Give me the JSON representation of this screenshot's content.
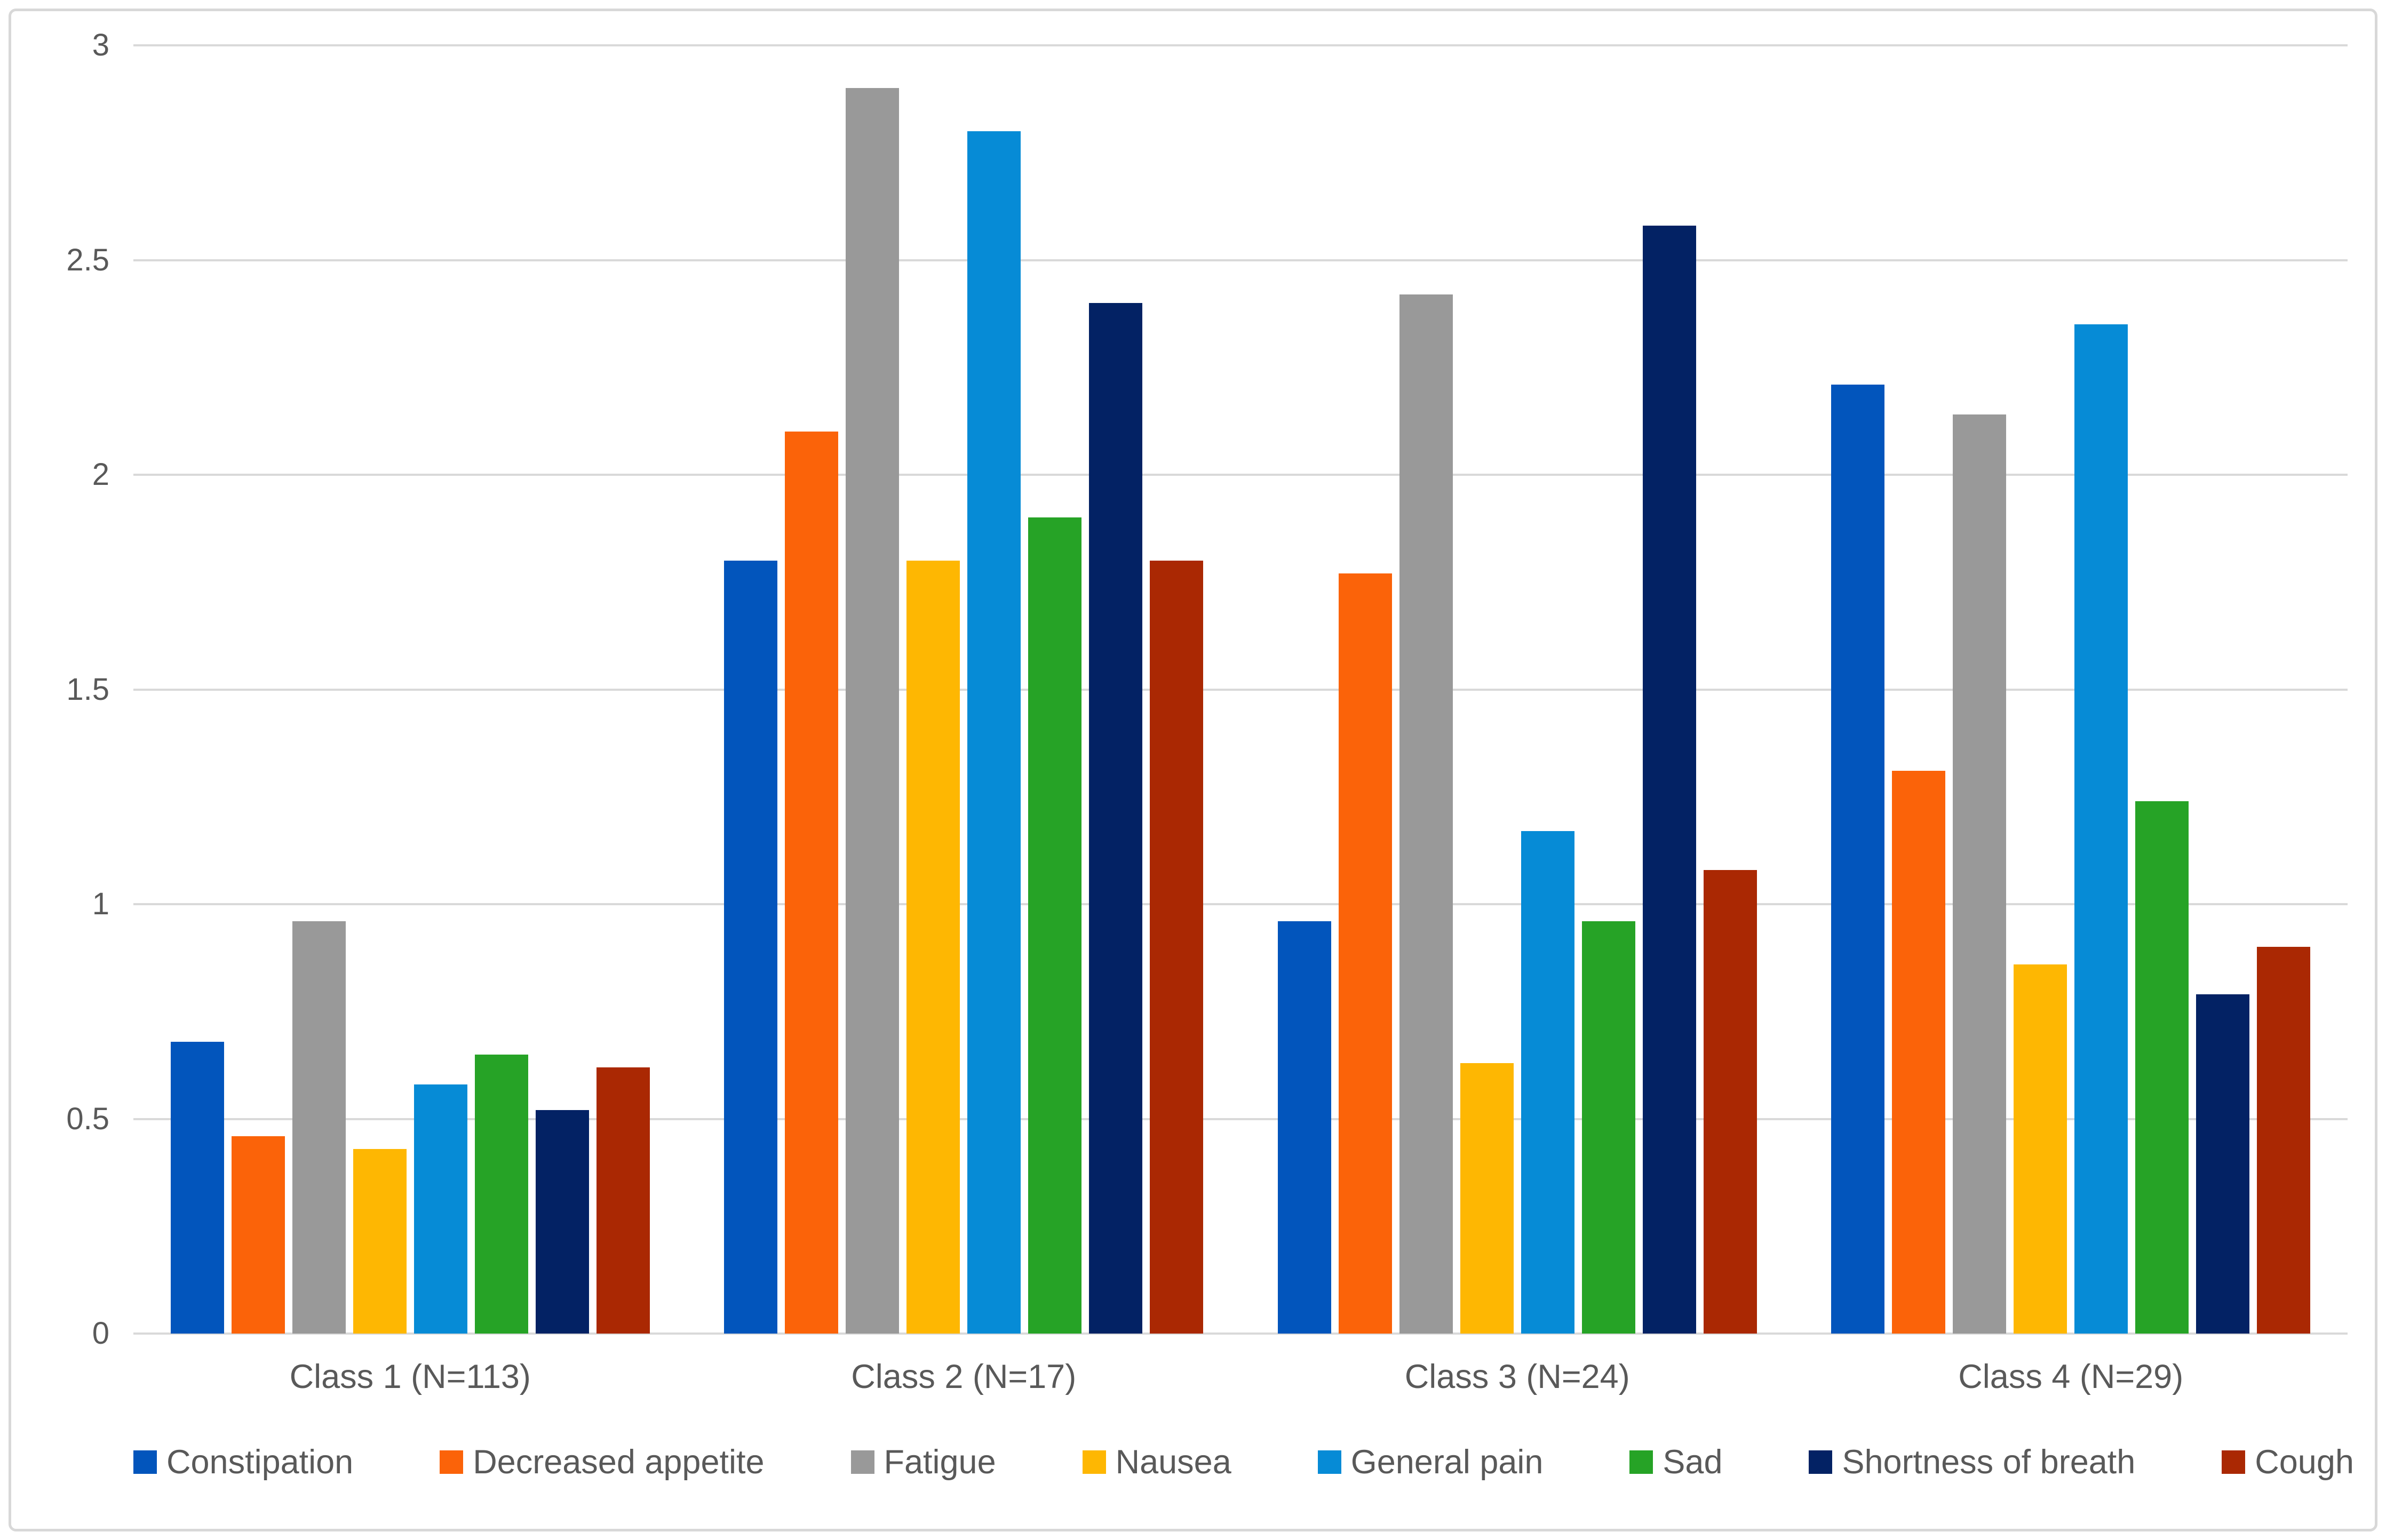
{
  "chart_data": {
    "type": "bar",
    "title": "",
    "xlabel": "",
    "ylabel": "",
    "categories": [
      "Class 1 (N=113)",
      "Class 2 (N=17)",
      "Class 3 (N=24)",
      "Class 4 (N=29)"
    ],
    "series": [
      {
        "name": "Constipation",
        "color": "#0255BC",
        "values": [
          0.68,
          1.8,
          0.96,
          2.21
        ]
      },
      {
        "name": "Decreased appetite",
        "color": "#FB6309",
        "values": [
          0.46,
          2.1,
          1.77,
          1.31
        ]
      },
      {
        "name": "Fatigue",
        "color": "#999999",
        "values": [
          0.96,
          2.9,
          2.42,
          2.14
        ]
      },
      {
        "name": "Nausea",
        "color": "#FEB702",
        "values": [
          0.43,
          1.8,
          0.63,
          0.86
        ]
      },
      {
        "name": "General pain",
        "color": "#068BD6",
        "values": [
          0.58,
          2.8,
          1.17,
          2.35
        ]
      },
      {
        "name": "Sad",
        "color": "#26A326",
        "values": [
          0.65,
          1.9,
          0.96,
          1.24
        ]
      },
      {
        "name": "Shortness of breath",
        "color": "#032264",
        "values": [
          0.52,
          2.4,
          2.58,
          0.79
        ]
      },
      {
        "name": "Cough",
        "color": "#AA2803",
        "values": [
          0.62,
          1.8,
          1.08,
          0.9
        ]
      }
    ],
    "ylim": [
      0,
      3
    ],
    "yticks": [
      0,
      0.5,
      1,
      1.5,
      2,
      2.5,
      3
    ],
    "ytick_labels": [
      "0",
      "0.5",
      "1",
      "1.5",
      "2",
      "2.5",
      "3"
    ],
    "grid": true,
    "legend_position": "bottom"
  },
  "styles": {
    "text_color": "#595959",
    "gridline_color": "#D9D9D9",
    "border_color": "#D8D8D8",
    "background": "#FFFFFF"
  }
}
